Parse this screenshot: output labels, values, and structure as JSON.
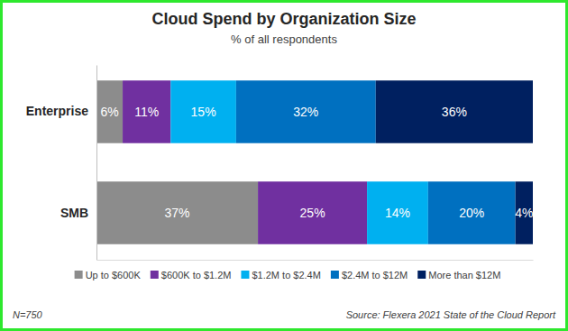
{
  "chart_data": {
    "type": "bar",
    "orientation": "horizontal",
    "stacked": true,
    "data_labels": true,
    "tick_labels": "y",
    "title": "Cloud Spend by Organization Size",
    "subtitle": "% of all respondents",
    "categories": [
      "Enterprise",
      "SMB"
    ],
    "xlim": [
      0,
      100
    ],
    "legend": "bottom",
    "series": [
      {
        "name": "Up to $600K",
        "color": "#8c8c8c",
        "values": [
          6,
          37
        ],
        "value_labels": [
          "6%",
          "37%"
        ]
      },
      {
        "name": "$600K to $1.2M",
        "color": "#7030a0",
        "values": [
          11,
          25
        ],
        "value_labels": [
          "11%",
          "25%"
        ]
      },
      {
        "name": "$1.2M to $2.4M",
        "color": "#00b0f0",
        "values": [
          15,
          14
        ],
        "value_labels": [
          "15%",
          "14%"
        ]
      },
      {
        "name": "$2.4M to $12M",
        "color": "#0070c0",
        "values": [
          32,
          20
        ],
        "value_labels": [
          "32%",
          "20%"
        ]
      },
      {
        "name": "More than $12M",
        "color": "#002060",
        "values": [
          36,
          4
        ],
        "value_labels": [
          "36%",
          "4%"
        ]
      }
    ],
    "annotations": [
      "N=750",
      "Source: Flexera 2021 State of the Cloud Report"
    ]
  }
}
